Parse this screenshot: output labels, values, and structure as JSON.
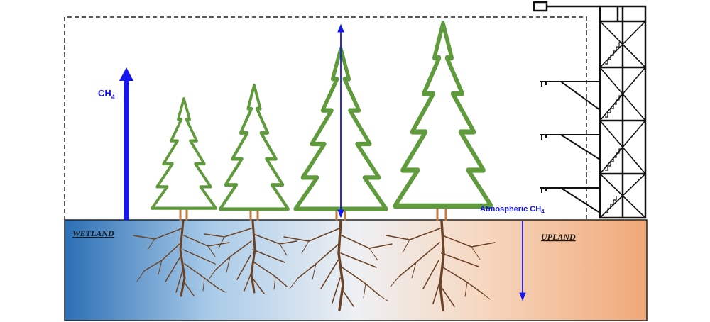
{
  "labels": {
    "ch4_main": "CH",
    "ch4_sub": "4",
    "atmospheric_main": "Atmospheric CH",
    "atmospheric_sub": "4",
    "wetland": "WETLAND",
    "upland": "UPLAND"
  },
  "colors": {
    "tree_outline": "#5f9a3c",
    "trunk": "#c47a3e",
    "root": "#6b4226",
    "arrow": "#1515ee",
    "soil_wetland": "#2b6fb5",
    "soil_mid": "#e8eef5",
    "soil_upland": "#f0a878",
    "tower": "#111111"
  },
  "icons": [
    "tree-icon",
    "roots-icon",
    "flux-tower-icon",
    "arrow-icon"
  ]
}
